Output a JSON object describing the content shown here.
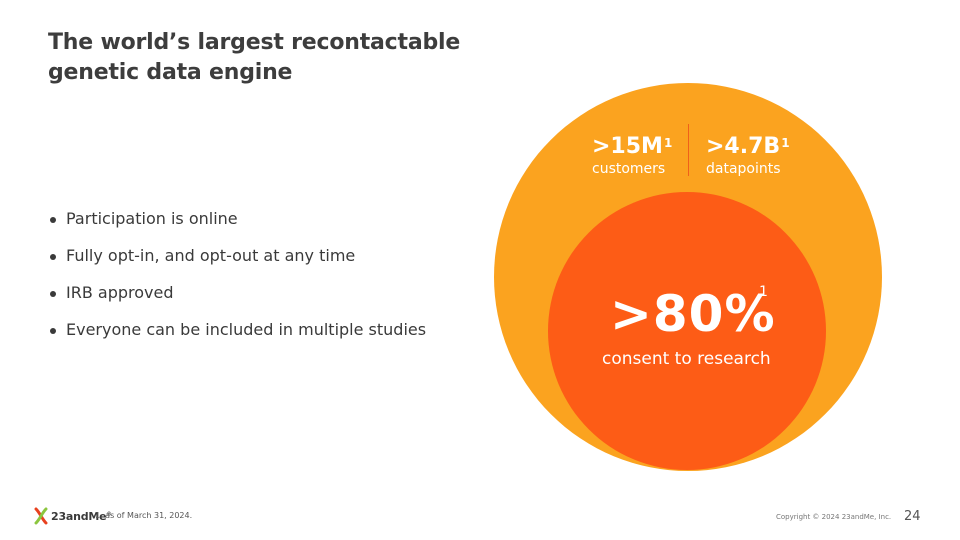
{
  "slide": {
    "title_lines": [
      "The world’s largest recontactable",
      "genetic data engine"
    ],
    "bullets": [
      "Participation is online",
      "Fully opt-in, and opt-out at any time",
      "IRB approved",
      "Everyone can be included in multiple studies"
    ],
    "graphic": {
      "stat_a": {
        "value": ">15M",
        "footnote_ref": "1",
        "label": "customers"
      },
      "stat_b": {
        "value": ">4.7B",
        "footnote_ref": "1",
        "label": "datapoints"
      },
      "consent": {
        "value": ">80%",
        "footnote_ref": "1",
        "label": "consent to research"
      },
      "colors": {
        "outer": "#fba31f",
        "inner": "#fd5c16"
      }
    },
    "footer": {
      "logo_text": "23andMe",
      "logo_mark": "®",
      "footnote": "1.  as of March 31, 2024.",
      "copyright": "Copyright © 2024 23andMe, Inc.",
      "page_number": "24"
    }
  }
}
